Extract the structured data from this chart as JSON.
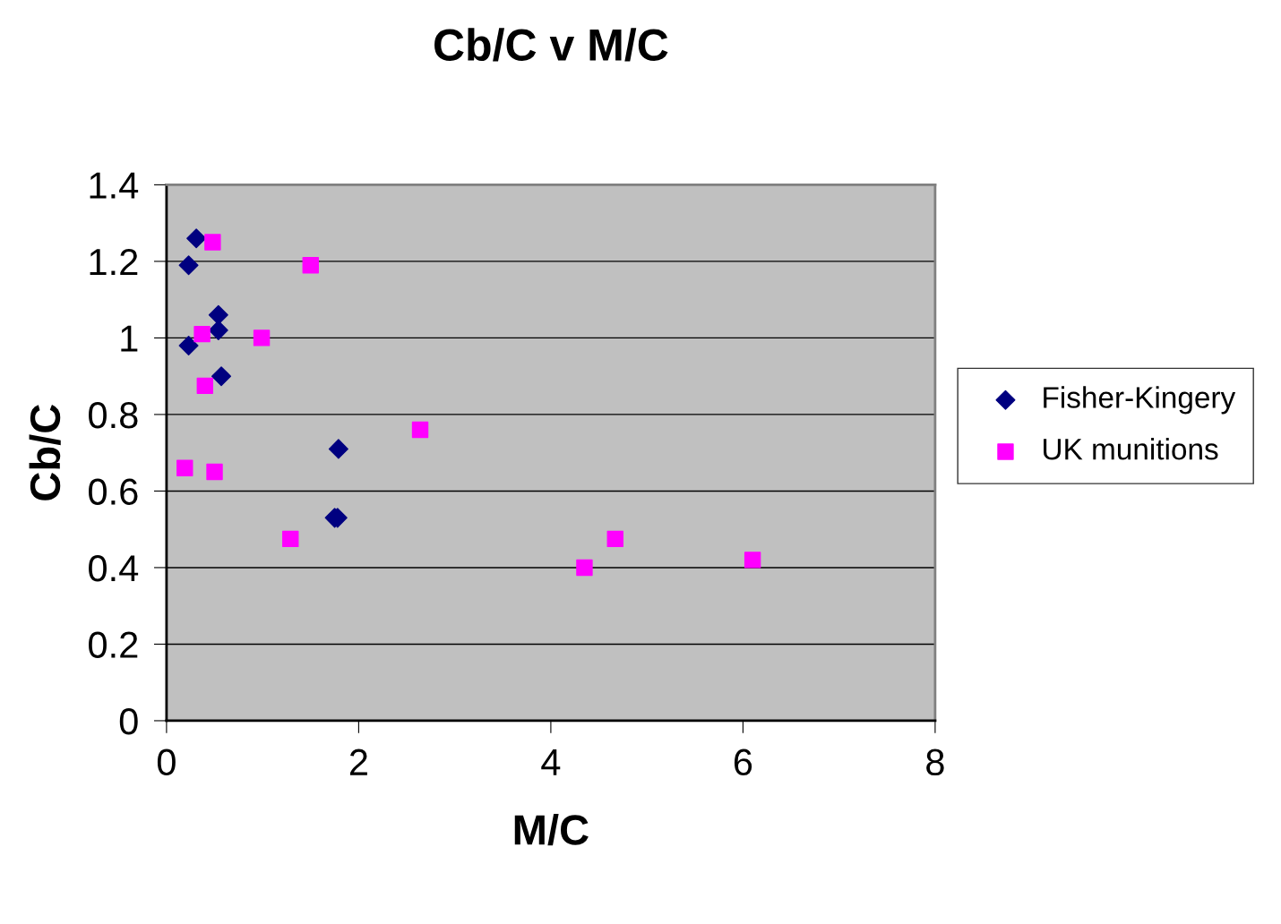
{
  "chart_data": {
    "type": "scatter",
    "title": "Cb/C v M/C",
    "xlabel": "M/C",
    "ylabel": "Cb/C",
    "xlim": [
      0,
      8
    ],
    "xticks": [
      0,
      2,
      4,
      6,
      8
    ],
    "ylim": [
      0,
      1.4
    ],
    "yticks": [
      0,
      0.2,
      0.4,
      0.6,
      0.8,
      1,
      1.2,
      1.4
    ],
    "grid": "y",
    "legend": "right",
    "series": [
      {
        "name": "Fisher-Kingery",
        "color": "#000080",
        "marker": "diamond",
        "x": [
          0.31,
          0.23,
          0.54,
          0.54,
          0.23,
          0.57,
          1.79,
          1.78,
          1.75
        ],
        "values": [
          1.26,
          1.19,
          1.06,
          1.02,
          0.98,
          0.9,
          0.71,
          0.53,
          0.53
        ]
      },
      {
        "name": "UK munitions",
        "color": "#ff00ff",
        "marker": "square",
        "x": [
          0.48,
          1.5,
          0.37,
          0.99,
          0.4,
          2.64,
          0.19,
          0.5,
          1.29,
          4.35,
          4.67,
          6.1
        ],
        "values": [
          1.25,
          1.19,
          1.01,
          1.0,
          0.875,
          0.76,
          0.66,
          0.65,
          0.475,
          0.4,
          0.475,
          0.42
        ]
      }
    ]
  }
}
